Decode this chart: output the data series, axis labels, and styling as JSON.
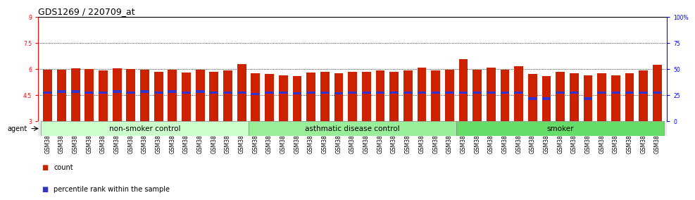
{
  "title": "GDS1269 / 220709_at",
  "categories": [
    "GSM38345",
    "GSM38346",
    "GSM38348",
    "GSM38350",
    "GSM38351",
    "GSM38353",
    "GSM38355",
    "GSM38356",
    "GSM38358",
    "GSM38362",
    "GSM38368",
    "GSM38371",
    "GSM38373",
    "GSM38377",
    "GSM38385",
    "GSM38361",
    "GSM38363",
    "GSM38364",
    "GSM38365",
    "GSM38370",
    "GSM38372",
    "GSM38375",
    "GSM38378",
    "GSM38379",
    "GSM38381",
    "GSM38383",
    "GSM38386",
    "GSM38387",
    "GSM38388",
    "GSM38389",
    "GSM38347",
    "GSM38349",
    "GSM38352",
    "GSM38354",
    "GSM38357",
    "GSM38359",
    "GSM38360",
    "GSM38366",
    "GSM38367",
    "GSM38369",
    "GSM38374",
    "GSM38376",
    "GSM38380",
    "GSM38382",
    "GSM38384"
  ],
  "bar_values": [
    5.95,
    5.95,
    6.05,
    6.0,
    5.9,
    6.05,
    6.0,
    5.95,
    5.85,
    5.95,
    5.8,
    5.95,
    5.85,
    5.9,
    6.3,
    5.75,
    5.7,
    5.65,
    5.6,
    5.8,
    5.85,
    5.75,
    5.85,
    5.85,
    5.9,
    5.85,
    5.9,
    6.1,
    5.9,
    5.95,
    6.55,
    5.95,
    6.1,
    5.95,
    6.15,
    5.7,
    5.6,
    5.85,
    5.75,
    5.65,
    5.75,
    5.65,
    5.75,
    5.9,
    6.25
  ],
  "percentile_values": [
    4.65,
    4.7,
    4.7,
    4.65,
    4.65,
    4.7,
    4.65,
    4.7,
    4.65,
    4.7,
    4.65,
    4.7,
    4.65,
    4.65,
    4.65,
    4.55,
    4.65,
    4.65,
    4.6,
    4.65,
    4.65,
    4.6,
    4.65,
    4.65,
    4.65,
    4.65,
    4.65,
    4.65,
    4.65,
    4.65,
    4.65,
    4.65,
    4.65,
    4.65,
    4.65,
    4.3,
    4.3,
    4.65,
    4.65,
    4.3,
    4.65,
    4.65,
    4.65,
    4.65,
    4.65
  ],
  "bar_color": "#cc2200",
  "percentile_color": "#3333cc",
  "ymin": 3.0,
  "ymax": 9.0,
  "yticks_left": [
    3.0,
    4.5,
    6.0,
    7.5,
    9.0
  ],
  "yticks_right": [
    0,
    25,
    50,
    75,
    100
  ],
  "groups": [
    {
      "label": "non-smoker control",
      "start": 0,
      "end": 14,
      "color": "#ccffcc"
    },
    {
      "label": "asthmatic disease control",
      "start": 15,
      "end": 29,
      "color": "#99ee99"
    },
    {
      "label": "smoker",
      "start": 30,
      "end": 44,
      "color": "#66dd66"
    }
  ],
  "legend_items": [
    {
      "label": "count",
      "color": "#cc2200"
    },
    {
      "label": "percentile rank within the sample",
      "color": "#3333cc"
    }
  ],
  "title_fontsize": 9,
  "tick_fontsize": 5.5,
  "group_label_fontsize": 7.5,
  "agent_label": "agent"
}
